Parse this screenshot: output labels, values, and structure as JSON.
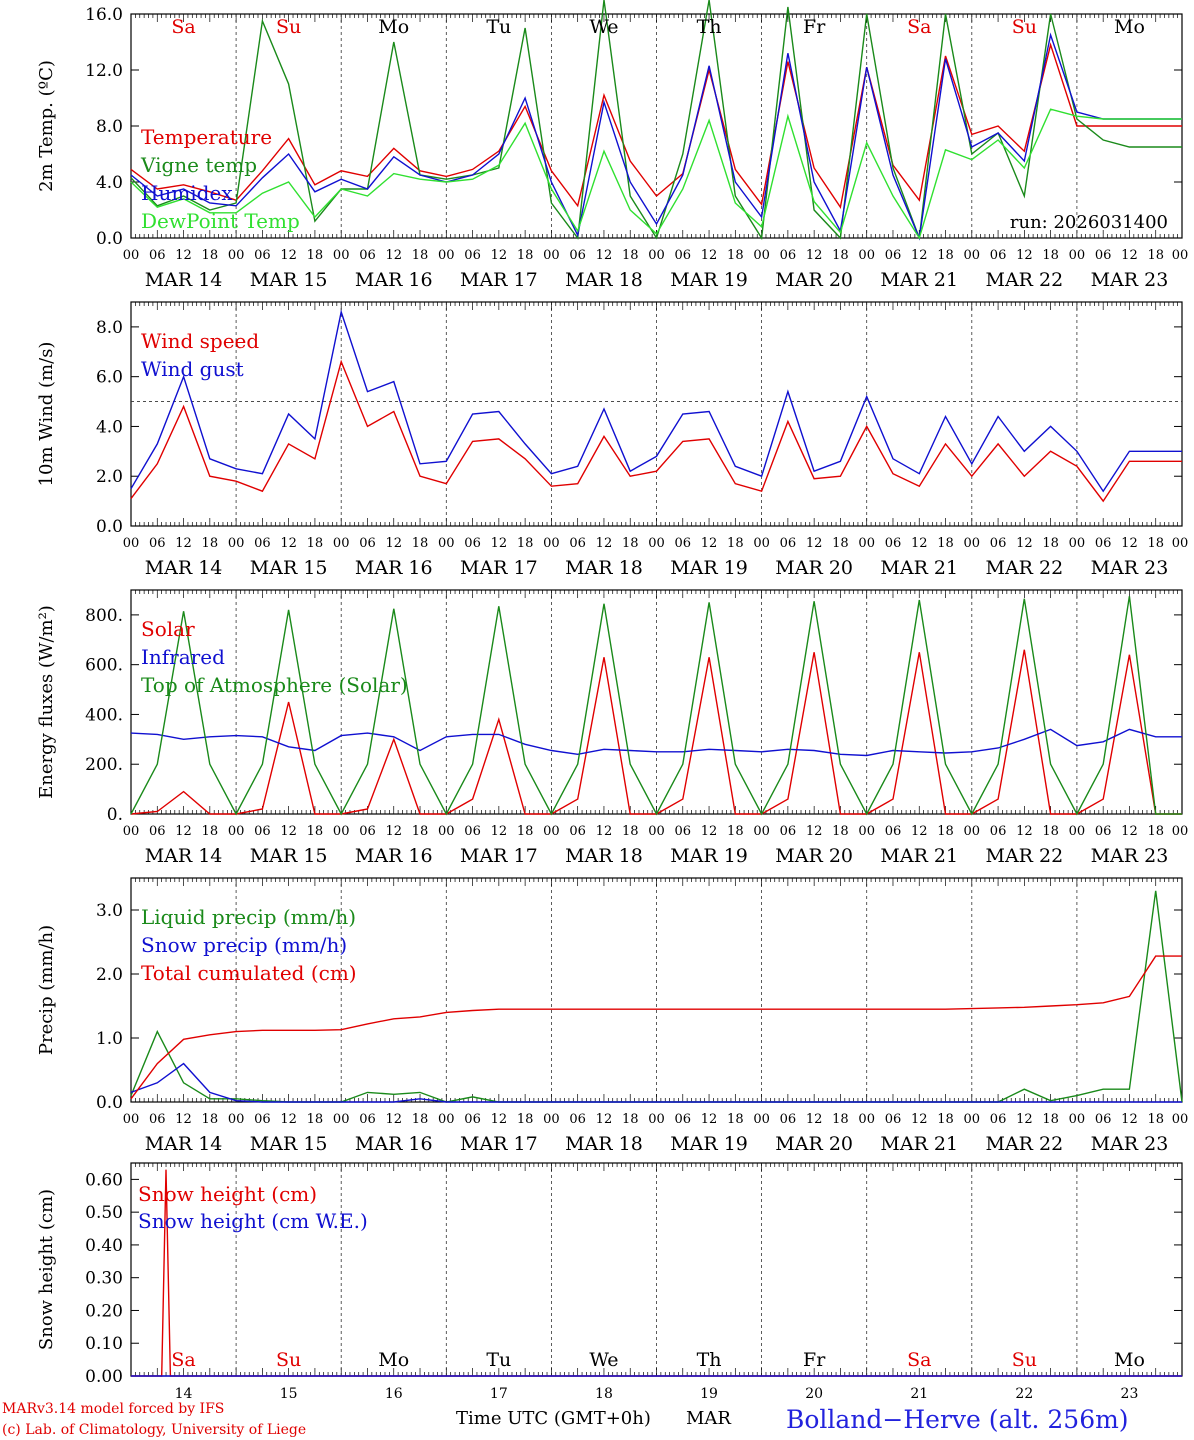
{
  "run_label": "run: 2026031400",
  "credits": [
    "MARv3.14 model forced by IFS",
    "(c) Lab. of Climatology, University of Liege"
  ],
  "station": "Bolland−Herve (alt. 256m)",
  "time_label": "Time UTC (GMT+0h)",
  "month_label": "MAR",
  "days": [
    "Sa",
    "Su",
    "Mo",
    "Tu",
    "We",
    "Th",
    "Fr",
    "Sa",
    "Su",
    "Mo"
  ],
  "day_colors": [
    "#e00000",
    "#e00000",
    "#000000",
    "#000000",
    "#000000",
    "#000000",
    "#000000",
    "#e00000",
    "#e00000",
    "#000000"
  ],
  "dates": [
    "MAR 14",
    "MAR 15",
    "MAR 16",
    "MAR 17",
    "MAR 18",
    "MAR 19",
    "MAR 20",
    "MAR 21",
    "MAR 22",
    "MAR 23"
  ],
  "day_numbers": [
    "14",
    "15",
    "16",
    "17",
    "18",
    "19",
    "20",
    "21",
    "22",
    "23"
  ],
  "hour_ticks": [
    "00",
    "06",
    "12",
    "18"
  ],
  "colors": {
    "red": "#e00000",
    "green": "#1a8a1a",
    "blue": "#1010d0",
    "lightgreen": "#30e030"
  },
  "chart_data": [
    {
      "type": "line",
      "ylabel": "2m Temp. (ºC)",
      "ylim": [
        0,
        16
      ],
      "yticks": [
        "0.0",
        "4.0",
        "8.0",
        "12.0",
        "16.0"
      ],
      "yticks_values": [
        0,
        4,
        8,
        12,
        16
      ],
      "x_hours": [
        0,
        6,
        12,
        18,
        24,
        30,
        36,
        42,
        48,
        54,
        60,
        66,
        72,
        78,
        84,
        90,
        96,
        102,
        108,
        114,
        120,
        126,
        132,
        138,
        144,
        150,
        156,
        162,
        168,
        174,
        180,
        186,
        192,
        198,
        204,
        210,
        216,
        222,
        228,
        234,
        240
      ],
      "series": [
        {
          "name": "Temperature",
          "color": "red",
          "values": [
            4.9,
            3.5,
            3.8,
            3.3,
            2.7,
            4.8,
            7.1,
            3.8,
            4.8,
            4.4,
            6.4,
            4.8,
            4.4,
            4.9,
            6.2,
            9.4,
            4.8,
            2.3,
            10.2,
            5.5,
            3.0,
            4.6,
            12.0,
            4.9,
            2.4,
            12.6,
            5.0,
            2.2,
            12.2,
            5.2,
            2.7,
            13.0,
            7.4,
            8.0,
            6.2,
            13.8,
            8.0,
            8.0,
            8.0,
            8.0,
            8.0
          ]
        },
        {
          "name": "Vigne temp",
          "color": "green",
          "values": [
            4.3,
            2.3,
            3.0,
            2.0,
            2.5,
            15.5,
            11.0,
            1.2,
            3.5,
            3.5,
            14.0,
            4.5,
            4.2,
            4.5,
            5.0,
            15.0,
            2.5,
            0.0,
            17.0,
            3.0,
            0.0,
            6.0,
            17.0,
            3.0,
            0.0,
            16.5,
            2.0,
            0.0,
            16.0,
            5.0,
            0.0,
            16.0,
            6.0,
            7.5,
            3.0,
            16.0,
            8.5,
            7.0,
            6.5,
            6.5,
            6.5
          ]
        },
        {
          "name": "Humidex",
          "color": "blue",
          "values": [
            4.5,
            3.0,
            3.5,
            2.5,
            2.3,
            4.3,
            6.0,
            3.3,
            4.2,
            3.5,
            5.8,
            4.5,
            4.0,
            4.5,
            6.0,
            10.0,
            4.0,
            0.2,
            9.7,
            4.0,
            1.0,
            4.5,
            12.3,
            4.0,
            1.5,
            13.2,
            4.0,
            0.5,
            12.2,
            4.5,
            0.0,
            12.8,
            6.5,
            7.5,
            5.5,
            14.5,
            9.0,
            8.5,
            8.5,
            8.5,
            8.5
          ]
        },
        {
          "name": "DewPoint Temp",
          "color": "lightgreen",
          "values": [
            4.0,
            2.2,
            2.8,
            1.8,
            1.8,
            3.2,
            4.0,
            1.5,
            3.5,
            3.0,
            4.6,
            4.2,
            4.0,
            4.2,
            5.2,
            8.2,
            3.5,
            0.5,
            6.2,
            2.0,
            0.3,
            3.5,
            8.4,
            2.5,
            0.8,
            8.7,
            2.6,
            0.4,
            6.8,
            3.0,
            0.0,
            6.3,
            5.6,
            7.0,
            5.0,
            9.2,
            8.7,
            8.5,
            8.5,
            8.5,
            8.5
          ]
        }
      ]
    },
    {
      "type": "line",
      "ylabel": "10m Wind (m/s)",
      "ylim": [
        0,
        9
      ],
      "yticks": [
        "0.0",
        "2.0",
        "4.0",
        "6.0",
        "8.0"
      ],
      "yticks_values": [
        0,
        2,
        4,
        6,
        8
      ],
      "reference_line": 5.0,
      "x_hours": [
        0,
        6,
        12,
        18,
        24,
        30,
        36,
        42,
        48,
        54,
        60,
        66,
        72,
        78,
        84,
        90,
        96,
        102,
        108,
        114,
        120,
        126,
        132,
        138,
        144,
        150,
        156,
        162,
        168,
        174,
        180,
        186,
        192,
        198,
        204,
        210,
        216,
        222,
        228,
        234,
        240
      ],
      "series": [
        {
          "name": "Wind speed",
          "color": "red",
          "values": [
            1.1,
            2.5,
            4.8,
            2.0,
            1.8,
            1.4,
            3.3,
            2.7,
            6.6,
            4.0,
            4.6,
            2.0,
            1.7,
            3.4,
            3.5,
            2.7,
            1.6,
            1.7,
            3.6,
            2.0,
            2.2,
            3.4,
            3.5,
            1.7,
            1.4,
            4.2,
            1.9,
            2.0,
            4.0,
            2.1,
            1.6,
            3.3,
            2.0,
            3.3,
            2.0,
            3.0,
            2.4,
            1.0,
            2.6,
            2.6,
            2.6
          ]
        },
        {
          "name": "Wind gust",
          "color": "blue",
          "values": [
            1.5,
            3.3,
            6.0,
            2.7,
            2.3,
            2.1,
            4.5,
            3.5,
            8.6,
            5.4,
            5.8,
            2.5,
            2.6,
            4.5,
            4.6,
            3.3,
            2.1,
            2.4,
            4.7,
            2.2,
            2.8,
            4.5,
            4.6,
            2.4,
            2.0,
            5.4,
            2.2,
            2.6,
            5.2,
            2.7,
            2.1,
            4.4,
            2.5,
            4.4,
            3.0,
            4.0,
            3.0,
            1.4,
            3.0,
            3.0,
            3.0
          ]
        }
      ]
    },
    {
      "type": "line",
      "ylabel": "Energy fluxes (W/m²)",
      "ylim": [
        0,
        900
      ],
      "yticks": [
        "0.",
        "200.",
        "400.",
        "600.",
        "800."
      ],
      "yticks_values": [
        0,
        200,
        400,
        600,
        800
      ],
      "x_hours": [
        0,
        6,
        12,
        18,
        24,
        30,
        36,
        42,
        48,
        54,
        60,
        66,
        72,
        78,
        84,
        90,
        96,
        102,
        108,
        114,
        120,
        126,
        132,
        138,
        144,
        150,
        156,
        162,
        168,
        174,
        180,
        186,
        192,
        198,
        204,
        210,
        216,
        222,
        228,
        234,
        240
      ],
      "series": [
        {
          "name": "Solar",
          "color": "red",
          "values": [
            0,
            10,
            90,
            0,
            0,
            20,
            450,
            0,
            0,
            20,
            300,
            0,
            0,
            60,
            380,
            0,
            0,
            60,
            630,
            0,
            0,
            60,
            630,
            0,
            0,
            60,
            650,
            0,
            0,
            60,
            650,
            0,
            0,
            60,
            660,
            0,
            0,
            60,
            640,
            0,
            0
          ]
        },
        {
          "name": "Infrared",
          "color": "blue",
          "values": [
            325,
            320,
            300,
            310,
            315,
            310,
            270,
            255,
            315,
            325,
            310,
            255,
            310,
            320,
            320,
            280,
            255,
            240,
            260,
            255,
            250,
            250,
            260,
            255,
            250,
            260,
            255,
            240,
            235,
            255,
            250,
            245,
            250,
            265,
            300,
            340,
            275,
            290,
            340,
            310,
            310
          ]
        },
        {
          "name": "Top of Atmosphere (Solar)",
          "color": "green",
          "values": [
            0,
            200,
            815,
            200,
            0,
            200,
            820,
            200,
            0,
            200,
            825,
            200,
            0,
            200,
            835,
            200,
            0,
            200,
            845,
            200,
            0,
            200,
            850,
            200,
            0,
            200,
            855,
            200,
            0,
            200,
            860,
            200,
            0,
            200,
            865,
            200,
            0,
            200,
            875,
            0,
            0
          ]
        }
      ]
    },
    {
      "type": "line",
      "ylabel": "Precip (mm/h)",
      "ylim": [
        0,
        3.5
      ],
      "yticks": [
        "0.0",
        "1.0",
        "2.0",
        "3.0"
      ],
      "yticks_values": [
        0,
        1,
        2,
        3
      ],
      "x_hours": [
        0,
        6,
        12,
        18,
        24,
        30,
        36,
        42,
        48,
        54,
        60,
        66,
        72,
        78,
        84,
        90,
        96,
        102,
        108,
        114,
        120,
        126,
        132,
        138,
        144,
        150,
        156,
        162,
        168,
        174,
        180,
        186,
        192,
        198,
        204,
        210,
        216,
        222,
        228,
        234,
        240
      ],
      "series": [
        {
          "name": "Liquid precip (mm/h)",
          "color": "green",
          "values": [
            0.1,
            1.1,
            0.3,
            0.05,
            0.05,
            0.02,
            0.0,
            0.0,
            0.0,
            0.15,
            0.12,
            0.15,
            0.0,
            0.08,
            0.0,
            0.0,
            0.0,
            0.0,
            0.0,
            0.0,
            0.0,
            0.0,
            0.0,
            0.0,
            0.0,
            0.0,
            0.0,
            0.0,
            0.0,
            0.0,
            0.0,
            0.0,
            0.0,
            0.0,
            0.2,
            0.02,
            0.1,
            0.2,
            0.2,
            3.3,
            0.0
          ]
        },
        {
          "name": "Snow precip (mm/h)",
          "color": "blue",
          "values": [
            0.15,
            0.3,
            0.6,
            0.15,
            0.02,
            0.0,
            0.0,
            0.0,
            0.0,
            0.0,
            0.0,
            0.05,
            0.0,
            0.0,
            0.0,
            0.0,
            0.0,
            0.0,
            0.0,
            0.0,
            0.0,
            0.0,
            0.0,
            0.0,
            0.0,
            0.0,
            0.0,
            0.0,
            0.0,
            0.0,
            0.0,
            0.0,
            0.0,
            0.0,
            0.0,
            0.0,
            0.0,
            0.0,
            0.0,
            0.0,
            0.0
          ]
        },
        {
          "name": "Total cumulated (cm)",
          "color": "red",
          "values": [
            0.05,
            0.6,
            0.98,
            1.05,
            1.1,
            1.12,
            1.12,
            1.12,
            1.13,
            1.22,
            1.3,
            1.33,
            1.4,
            1.43,
            1.45,
            1.45,
            1.45,
            1.45,
            1.45,
            1.45,
            1.45,
            1.45,
            1.45,
            1.45,
            1.45,
            1.45,
            1.45,
            1.45,
            1.45,
            1.45,
            1.45,
            1.45,
            1.46,
            1.47,
            1.48,
            1.5,
            1.52,
            1.55,
            1.65,
            2.28,
            2.28
          ]
        }
      ]
    },
    {
      "type": "line",
      "ylabel": "Snow height (cm)",
      "ylim": [
        0,
        0.65
      ],
      "yticks": [
        "0.00",
        "0.10",
        "0.20",
        "0.30",
        "0.40",
        "0.50",
        "0.60"
      ],
      "yticks_values": [
        0,
        0.1,
        0.2,
        0.3,
        0.4,
        0.5,
        0.6
      ],
      "x_hours": [
        0,
        6,
        7,
        8,
        9,
        10,
        240
      ],
      "series": [
        {
          "name": "Snow height (cm)",
          "color": "red",
          "values": [
            0.0,
            0.0,
            0.0,
            0.63,
            0.0,
            0.0,
            0.0
          ]
        },
        {
          "name": "Snow height (cm W.E.)",
          "color": "blue",
          "values": [
            0.0,
            0.0,
            0.0,
            0.0,
            0.0,
            0.0,
            0.0
          ]
        }
      ]
    }
  ]
}
